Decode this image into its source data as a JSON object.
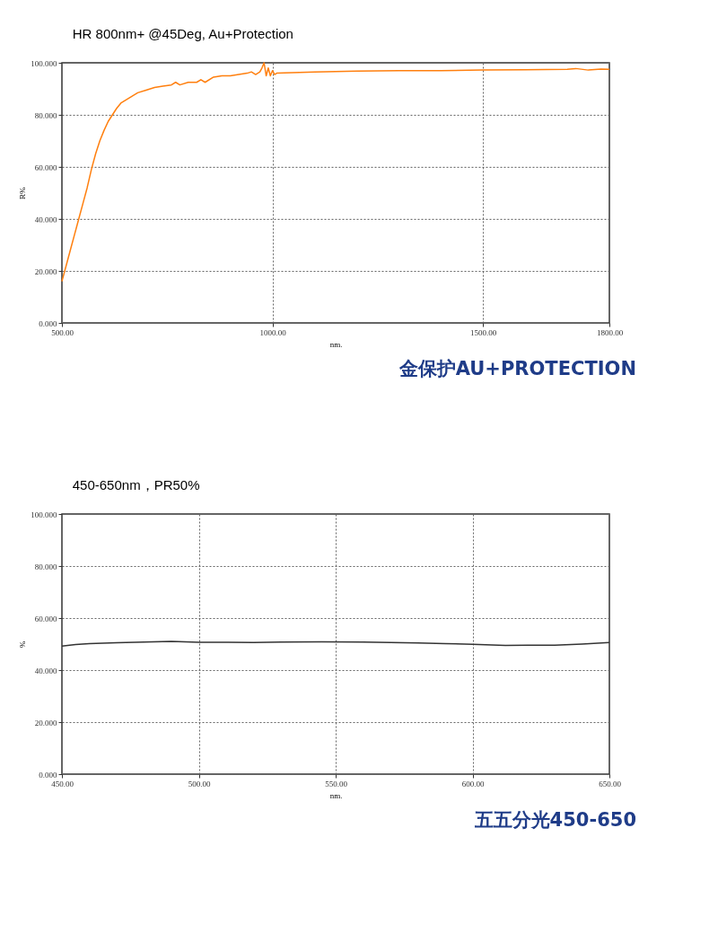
{
  "chart_data": [
    {
      "type": "line",
      "title": "HR 800nm+  @45Deg, Au+Protection",
      "xlabel": "nm.",
      "ylabel": "R%",
      "x": [
        500,
        510,
        520,
        530,
        540,
        550,
        560,
        570,
        580,
        590,
        600,
        610,
        620,
        630,
        640,
        660,
        680,
        700,
        720,
        740,
        760,
        770,
        780,
        800,
        820,
        830,
        840,
        860,
        880,
        900,
        920,
        940,
        950,
        960,
        970,
        975,
        980,
        985,
        990,
        995,
        1000,
        1005,
        1010,
        1100,
        1200,
        1300,
        1400,
        1500,
        1600,
        1700,
        1720,
        1750,
        1780,
        1800
      ],
      "series": [
        {
          "color": "#ff7f0e",
          "values": [
            16,
            22,
            28,
            34,
            40,
            46,
            52,
            59,
            65,
            70,
            74,
            77.5,
            80,
            82.5,
            84.5,
            86.5,
            88.5,
            89.5,
            90.5,
            91,
            91.5,
            92.5,
            91.5,
            92.5,
            92.5,
            93.5,
            92.5,
            94.5,
            95,
            95,
            95.5,
            96,
            96.5,
            95.5,
            96.5,
            98,
            100,
            95,
            98,
            95,
            97,
            95.5,
            96,
            96.5,
            96.8,
            97,
            97,
            97.2,
            97.3,
            97.5,
            97.8,
            97.2,
            97.6,
            97.5
          ]
        }
      ],
      "xlim": [
        500,
        1800
      ],
      "xticks": [
        {
          "value": 500,
          "label": "500.00"
        },
        {
          "value": 1000,
          "label": "1000.00"
        },
        {
          "value": 1500,
          "label": "1500.00"
        },
        {
          "value": 1800,
          "label": "1800.00"
        }
      ],
      "ylim": [
        0,
        100
      ],
      "yticks": [
        {
          "value": 0,
          "label": "0.000"
        },
        {
          "value": 20,
          "label": "20.000"
        },
        {
          "value": 40,
          "label": "40.000"
        },
        {
          "value": 60,
          "label": "60.000"
        },
        {
          "value": 80,
          "label": "80.000"
        },
        {
          "value": 100,
          "label": "100.000"
        }
      ],
      "grid": true,
      "marker": "none",
      "line_style": "solid",
      "annotations": [
        "金保护AU+PROTECTION"
      ]
    },
    {
      "type": "line",
      "title": "450-650nm，PR50%",
      "xlabel": "nm.",
      "ylabel": "%",
      "x": [
        450,
        455,
        460,
        470,
        480,
        490,
        500,
        510,
        520,
        530,
        545,
        560,
        570,
        580,
        590,
        600,
        612,
        620,
        630,
        640,
        650
      ],
      "series": [
        {
          "color": "#333333",
          "values": [
            49.2,
            49.8,
            50.2,
            50.5,
            50.8,
            51,
            50.7,
            50.7,
            50.6,
            50.8,
            50.9,
            50.8,
            50.6,
            50.4,
            50.2,
            49.9,
            49.5,
            49.6,
            49.6,
            50,
            50.6
          ]
        }
      ],
      "xlim": [
        450,
        650
      ],
      "xticks": [
        {
          "value": 450,
          "label": "450.00"
        },
        {
          "value": 500,
          "label": "500.00"
        },
        {
          "value": 550,
          "label": "550.00"
        },
        {
          "value": 600,
          "label": "600.00"
        },
        {
          "value": 650,
          "label": "650.00"
        }
      ],
      "ylim": [
        0,
        100
      ],
      "yticks": [
        {
          "value": 0,
          "label": "0.000"
        },
        {
          "value": 20,
          "label": "20.000"
        },
        {
          "value": 40,
          "label": "40.000"
        },
        {
          "value": 60,
          "label": "60.000"
        },
        {
          "value": 80,
          "label": "80.000"
        },
        {
          "value": 100,
          "label": "100.000"
        }
      ],
      "grid": true,
      "marker": "none",
      "line_style": "solid",
      "annotations": [
        "五五分光450-650"
      ]
    }
  ]
}
